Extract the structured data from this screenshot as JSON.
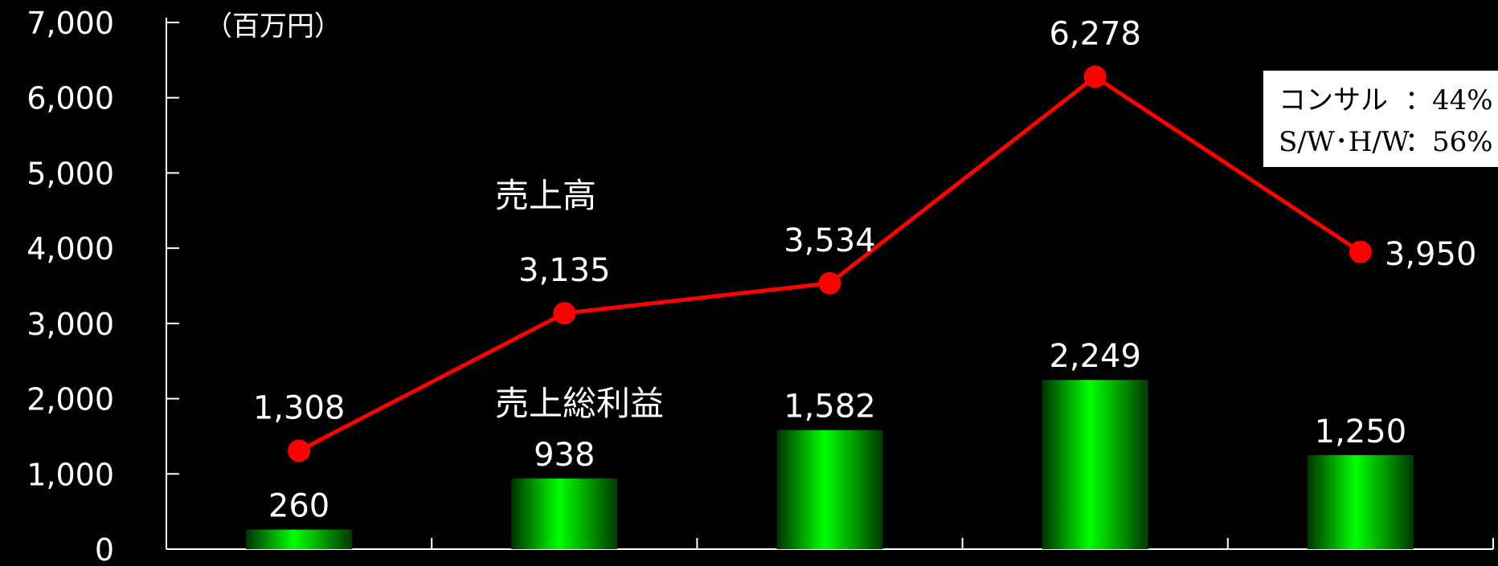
{
  "chart_data": {
    "type": "bar+line",
    "unit_label": "（百万円）",
    "categories": [
      "",
      "",
      "",
      "",
      ""
    ],
    "ylim": [
      0,
      7000
    ],
    "yticks": [
      "0",
      "1,000",
      "2,000",
      "3,000",
      "4,000",
      "5,000",
      "6,000",
      "7,000"
    ],
    "series": [
      {
        "name": "売上高",
        "kind": "line",
        "color": "#ff0000",
        "values": [
          1308,
          3135,
          3534,
          6278,
          3950
        ],
        "labels": [
          "1,308",
          "3,135",
          "3,534",
          "6,278",
          "3,950"
        ]
      },
      {
        "name": "売上総利益",
        "kind": "bar",
        "color": "#00ee00",
        "values": [
          260,
          938,
          1582,
          2249,
          1250
        ],
        "labels": [
          "260",
          "938",
          "1,582",
          "2,249",
          "1,250"
        ]
      }
    ],
    "legend_box": {
      "line1_name": "コンサル",
      "line1_value": "：44%",
      "line2_name": "S/W･H/W",
      "line2_value": "：56%"
    }
  }
}
